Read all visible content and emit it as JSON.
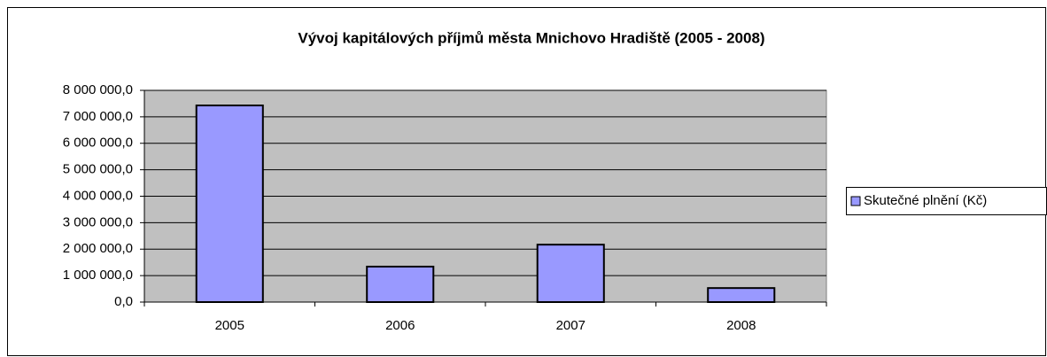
{
  "chart_data": {
    "type": "bar",
    "title": "Vývoj  kapitálových  příjmů  města  Mnichovo Hradiště (2005 - 2008)",
    "categories": [
      "2005",
      "2006",
      "2007",
      "2008"
    ],
    "series": [
      {
        "name": "Skutečné plnění (Kč)",
        "color": "#9999ff",
        "values": [
          7430000,
          1340000,
          2170000,
          530000
        ]
      }
    ],
    "ylim": [
      0,
      8000000
    ],
    "yticks": [
      {
        "value": 0,
        "label": "0,0"
      },
      {
        "value": 1000000,
        "label": "1 000 000,0"
      },
      {
        "value": 2000000,
        "label": "2 000 000,0"
      },
      {
        "value": 3000000,
        "label": "3 000 000,0"
      },
      {
        "value": 4000000,
        "label": "4 000 000,0"
      },
      {
        "value": 5000000,
        "label": "5 000 000,0"
      },
      {
        "value": 6000000,
        "label": "6 000 000,0"
      },
      {
        "value": 7000000,
        "label": "7 000 000,0"
      },
      {
        "value": 8000000,
        "label": "8 000 000,0"
      }
    ],
    "grid": true,
    "legend": "right"
  }
}
